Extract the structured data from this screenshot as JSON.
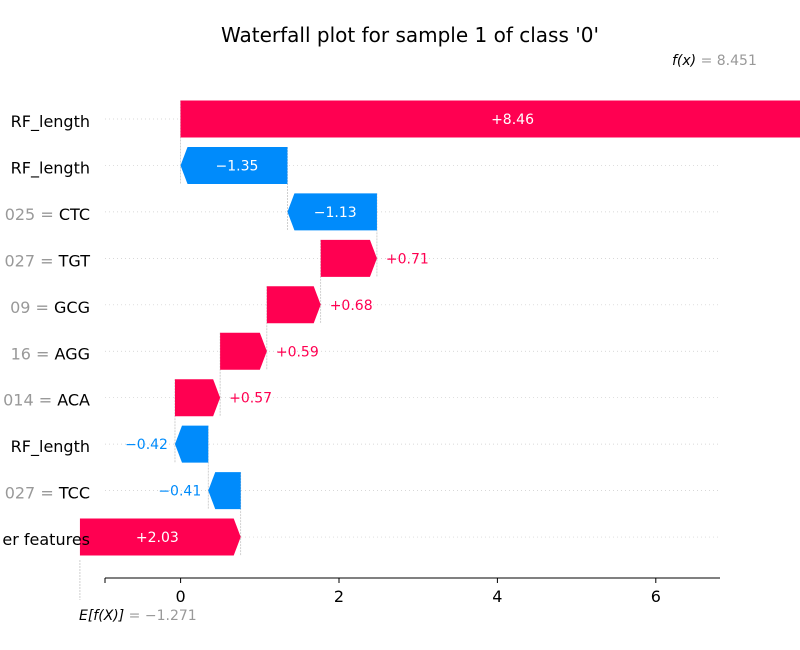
{
  "chart_data": {
    "type": "waterfall",
    "title": "Waterfall plot for sample 1 of class '0'",
    "base_value": -1.271,
    "base_label": "E[f(X)]",
    "base_value_text": "= −1.271",
    "output_value": 8.451,
    "output_label": "f(x)",
    "output_value_text": "= 8.451",
    "xlim": [
      -1.271,
      9.0
    ],
    "xticks": [
      0,
      2,
      4,
      6,
      8
    ],
    "colors": {
      "positive": "#ff0051",
      "negative": "#008bfb",
      "neutral": "#999999"
    },
    "features": [
      {
        "value_text": "",
        "name": "RF_length",
        "contribution": 8.46,
        "label": "+8.46"
      },
      {
        "value_text": "",
        "name": "RF_length",
        "contribution": -1.35,
        "label": "−1.35"
      },
      {
        "value_text": "025 = ",
        "name": "CTC",
        "contribution": -1.13,
        "label": "−1.13"
      },
      {
        "value_text": "027 = ",
        "name": "TGT",
        "contribution": 0.71,
        "label": "+0.71"
      },
      {
        "value_text": "09 = ",
        "name": "GCG",
        "contribution": 0.68,
        "label": "+0.68"
      },
      {
        "value_text": "16 = ",
        "name": "AGG",
        "contribution": 0.59,
        "label": "+0.59"
      },
      {
        "value_text": "014 = ",
        "name": "ACA",
        "contribution": 0.57,
        "label": "+0.57"
      },
      {
        "value_text": "",
        "name": "RF_length",
        "contribution": -0.42,
        "label": "−0.42"
      },
      {
        "value_text": "027 = ",
        "name": "TCC",
        "contribution": -0.41,
        "label": "−0.41"
      },
      {
        "value_text": "",
        "name": "er features",
        "contribution": 2.03,
        "label": "+2.03"
      }
    ]
  }
}
